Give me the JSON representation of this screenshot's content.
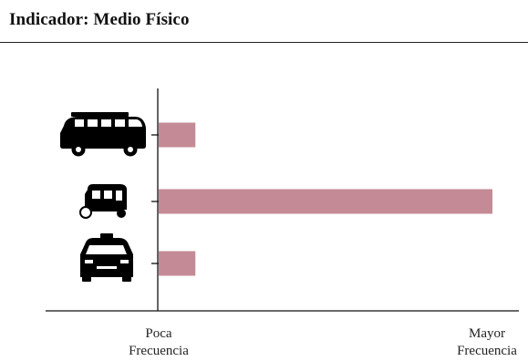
{
  "header": {
    "title": "Indicador: Medio Físico"
  },
  "chart_data": {
    "type": "bar",
    "orientation": "horizontal",
    "categories": [
      "van-icon",
      "mototaxi-icon",
      "taxi-icon"
    ],
    "values": [
      0.11,
      1.0,
      0.11
    ],
    "xlim": [
      0,
      1
    ],
    "xtick_labels": [
      {
        "value": 0,
        "line1": "Poca",
        "line2": "Frecuencia"
      },
      {
        "value": 1,
        "line1": "Mayor",
        "line2": "Frecuencia"
      }
    ],
    "bar_color": "#c48b96",
    "grid": false,
    "legend": "none"
  }
}
